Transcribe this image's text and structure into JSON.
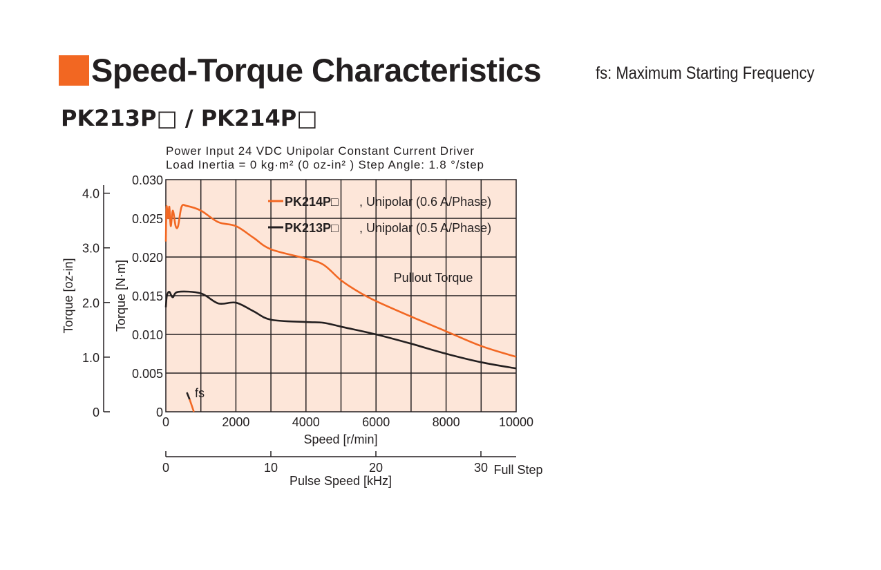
{
  "header": {
    "title": "Speed-Torque Characteristics",
    "subtitle": "fs: Maximum Starting Frequency",
    "model": "PK213P□ / PK214P□",
    "accent_color": "#f26722"
  },
  "chart_data": {
    "type": "line",
    "conditions": [
      "Power Input 24 VDC  Unipolar Constant Current Driver",
      "Load Inertia = 0 kg·m² (0 oz-in² )  Step Angle: 1.8 °/step"
    ],
    "xlabel": "Speed [r/min]",
    "ylabel": "Torque [N·m]",
    "ylabel2": "Torque [oz-in]",
    "xlabel2": "Pulse Speed [kHz]",
    "xlabel2_suffix": "Full Step",
    "xlim": [
      0,
      10000
    ],
    "ylim": [
      0,
      0.03
    ],
    "x_ticks": [
      "0",
      "2000",
      "4000",
      "6000",
      "8000",
      "10000"
    ],
    "y_ticks": [
      "0",
      "0.005",
      "0.010",
      "0.015",
      "0.020",
      "0.025",
      "0.030"
    ],
    "y2_ticks": [
      "0",
      "1.0",
      "2.0",
      "3.0",
      "4.0"
    ],
    "x2_ticks": [
      "0",
      "10",
      "20",
      "30"
    ],
    "grid": true,
    "annotation": "Pullout Torque",
    "fs_label": "fs",
    "series": [
      {
        "name": "PK214P□",
        "desc": ", Unipolar (0.6 A/Phase)",
        "color": "#f26722",
        "x": [
          0,
          20,
          60,
          100,
          140,
          200,
          280,
          350,
          450,
          600,
          1000,
          1500,
          2000,
          2500,
          3000,
          4000,
          4500,
          5000,
          5500,
          6000,
          7000,
          8000,
          9000,
          10000
        ],
        "y": [
          0.022,
          0.0265,
          0.025,
          0.0265,
          0.024,
          0.026,
          0.024,
          0.024,
          0.0265,
          0.0266,
          0.026,
          0.0245,
          0.024,
          0.0225,
          0.021,
          0.0198,
          0.019,
          0.017,
          0.0155,
          0.0143,
          0.0123,
          0.0104,
          0.0085,
          0.0071
        ]
      },
      {
        "name": "PK213P□",
        "desc": ", Unipolar (0.5 A/Phase)",
        "color": "#231f20",
        "x": [
          0,
          30,
          100,
          200,
          350,
          1000,
          1500,
          2000,
          2500,
          3000,
          4000,
          4500,
          5000,
          6000,
          7000,
          8000,
          9000,
          10000
        ],
        "y": [
          0.0135,
          0.015,
          0.0155,
          0.0148,
          0.0155,
          0.0153,
          0.014,
          0.0141,
          0.013,
          0.0119,
          0.0116,
          0.0115,
          0.011,
          0.01,
          0.0088,
          0.0075,
          0.0064,
          0.0056
        ]
      }
    ]
  }
}
